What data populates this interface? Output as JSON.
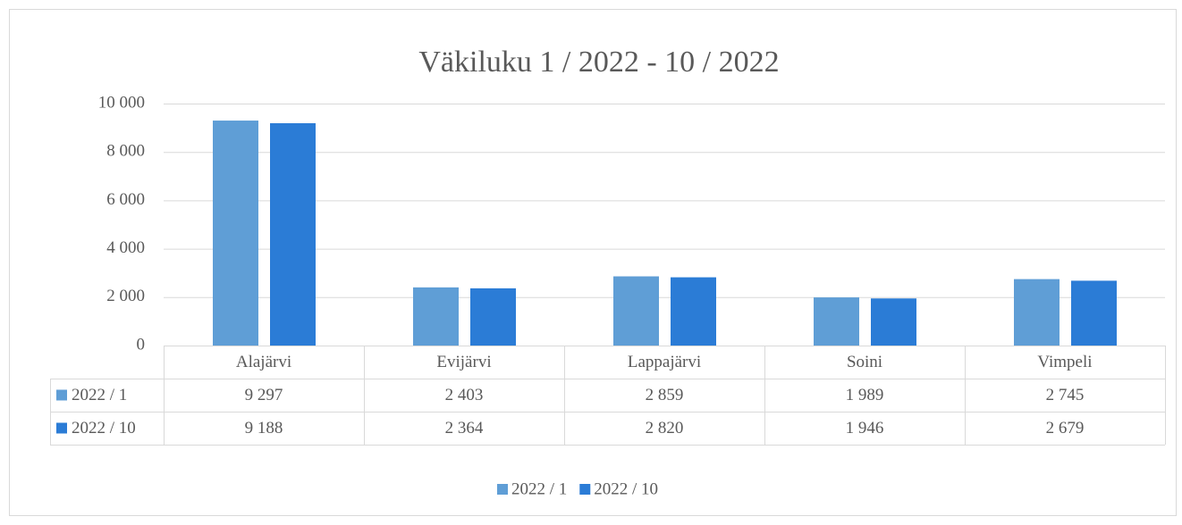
{
  "chart_data": {
    "type": "bar",
    "title": "Väkiluku 1 / 2022 - 10 / 2022",
    "categories": [
      "Alajärvi",
      "Evijärvi",
      "Lappajärvi",
      "Soini",
      "Vimpeli"
    ],
    "series": [
      {
        "name": "2022 / 1",
        "color": "#5f9ed6",
        "values": [
          9297,
          2403,
          2859,
          1989,
          2745
        ],
        "value_labels": [
          "9 297",
          "2 403",
          "2 859",
          "1 989",
          "2 745"
        ]
      },
      {
        "name": "2022 / 10",
        "color": "#2b7cd6",
        "values": [
          9188,
          2364,
          2820,
          1946,
          2679
        ],
        "value_labels": [
          "9 188",
          "2 364",
          "2 820",
          "1 946",
          "2 679"
        ]
      }
    ],
    "ylim": [
      0,
      10000
    ],
    "yticks": [
      0,
      {
        "value": 2000,
        "label": "2 000"
      },
      {
        "value": 4000,
        "label": "4 000"
      },
      {
        "value": 6000,
        "label": "6 000"
      },
      {
        "value": 8000,
        "label": "8 000"
      },
      {
        "value": 10000,
        "label": "10 000"
      }
    ],
    "grid": true,
    "legend": "bottom"
  }
}
